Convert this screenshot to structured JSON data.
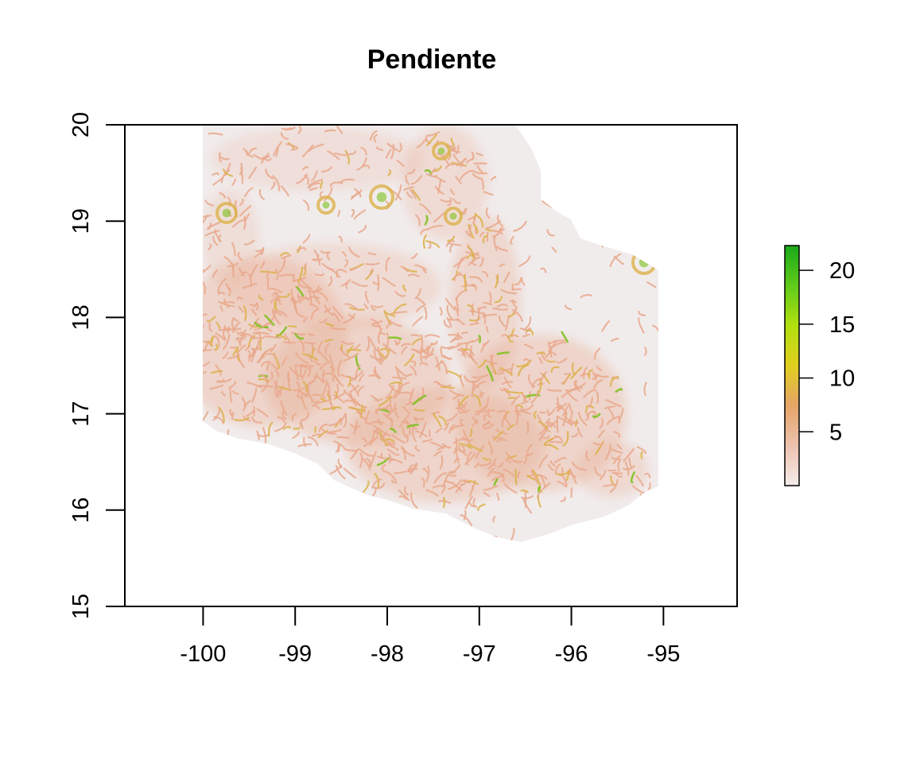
{
  "title": "Pendiente",
  "x_axis": {
    "ticks": [
      -100,
      -99,
      -98,
      -97,
      -96,
      -95
    ],
    "tick_labels": [
      "-100",
      "-99",
      "-98",
      "-97",
      "-96",
      "-95"
    ],
    "range": [
      -100.85,
      -94.2
    ]
  },
  "y_axis": {
    "ticks": [
      15,
      16,
      17,
      18,
      19,
      20
    ],
    "tick_labels": [
      "15",
      "16",
      "17",
      "18",
      "19",
      "20"
    ],
    "range": [
      15,
      20
    ]
  },
  "legend": {
    "ticks": [
      5,
      10,
      15,
      20
    ],
    "tick_labels": [
      "5",
      "10",
      "15",
      "20"
    ],
    "range": [
      0,
      22.3
    ],
    "colors": [
      "#f4ece9",
      "#ecc2ae",
      "#e6a467",
      "#e0cf1e",
      "#b2e010",
      "#5fcb1a",
      "#1aa91a"
    ],
    "placement": "right"
  },
  "region_colors": {
    "low": "#f1ecec",
    "mid": "#e9a98d",
    "high": "#dcb24a",
    "peak": "#7cc11c"
  }
}
